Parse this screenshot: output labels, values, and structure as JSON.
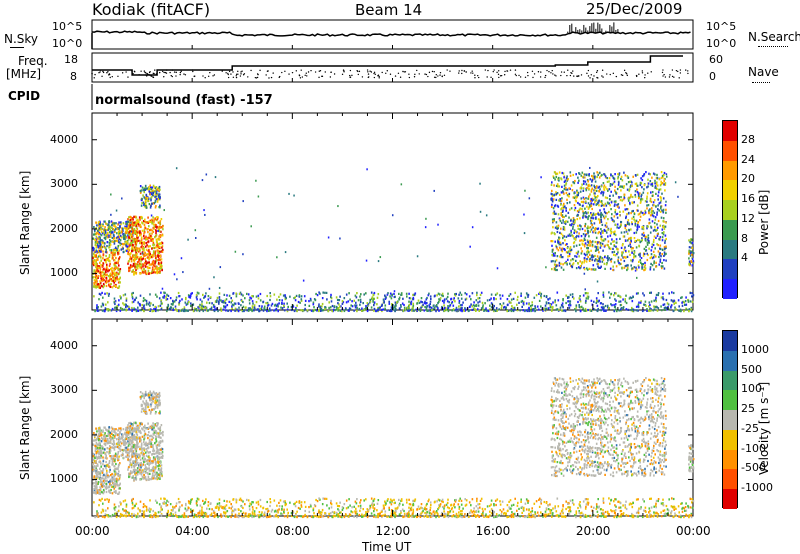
{
  "header": {
    "station": "Kodiak (fitACF)",
    "beam": "Beam 14",
    "date": "25/Dec/2009"
  },
  "noise_panel": {
    "left_label": "N.Sky",
    "right_label": "N.Search",
    "left_ticks": [
      "10^5",
      "10^0"
    ],
    "right_ticks": [
      "10^5",
      "10^0"
    ]
  },
  "freq_panel": {
    "left_label_line1": "Freq.",
    "left_label_line2": "[MHz]",
    "right_label": "Nave",
    "left_ticks": [
      "18",
      "8"
    ],
    "right_ticks": [
      "60",
      "0"
    ]
  },
  "cpid": {
    "label": "CPID",
    "text": "normalsound (fast) -157"
  },
  "power_panel": {
    "ylabel": "Slant Range [km]",
    "cb_label": "Power [dB]",
    "cb_ticks": [
      "28",
      "24",
      "20",
      "16",
      "12",
      "8",
      "4"
    ],
    "cb_colors": [
      "#e00000",
      "#ff5000",
      "#ff9a00",
      "#f0d000",
      "#a8d020",
      "#3a9a50",
      "#2a7a80",
      "#2040c0",
      "#2020ff"
    ]
  },
  "velocity_panel": {
    "ylabel": "Slant Range [km]",
    "cb_label": "Velocity [m s⁻¹]",
    "cb_ticks": [
      "1000",
      "500",
      "100",
      "25",
      "-25",
      "-100",
      "-500",
      "-1000"
    ],
    "cb_colors": [
      "#1a3aa0",
      "#2a70b0",
      "#3a9a6a",
      "#50c040",
      "#b8b8b0",
      "#f0c000",
      "#ff9000",
      "#ff5000",
      "#e00000"
    ]
  },
  "chart_data": {
    "type": "heatmap",
    "x_axis": {
      "label": "Time UT",
      "ticks": [
        "00:00",
        "04:00",
        "08:00",
        "12:00",
        "16:00",
        "20:00",
        "00:00"
      ],
      "range_hours": [
        0,
        24
      ]
    },
    "y_axis": {
      "label": "Slant Range [km]",
      "ticks": [
        1000,
        2000,
        3000,
        4000
      ],
      "range_km": [
        180,
        4600
      ]
    },
    "power_scatter_regions": [
      {
        "t_start": 0.0,
        "t_end": 1.1,
        "r_start": 700,
        "r_end": 1500,
        "level": "high"
      },
      {
        "t_start": 0.0,
        "t_end": 1.6,
        "r_start": 1500,
        "r_end": 2200,
        "level": "mid"
      },
      {
        "t_start": 1.4,
        "t_end": 2.8,
        "r_start": 1000,
        "r_end": 2300,
        "level": "high"
      },
      {
        "t_start": 1.9,
        "t_end": 2.7,
        "r_start": 2500,
        "r_end": 3000,
        "level": "mid"
      },
      {
        "t_start": 18.3,
        "t_end": 22.9,
        "r_start": 1100,
        "r_end": 3300,
        "level": "mid"
      },
      {
        "t_start": 23.8,
        "t_end": 24.0,
        "r_start": 1200,
        "r_end": 1800,
        "level": "mid"
      },
      {
        "t_start": 0.0,
        "t_end": 24.0,
        "r_start": 180,
        "r_end": 600,
        "level": "low"
      }
    ]
  }
}
